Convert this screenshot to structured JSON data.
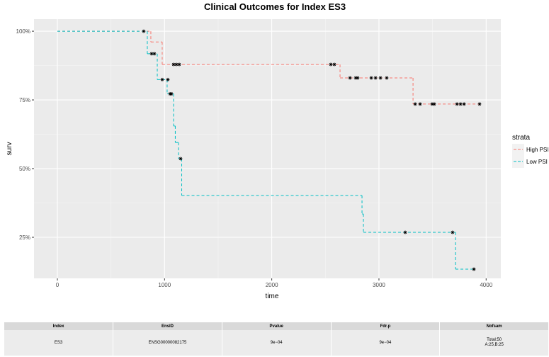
{
  "chart_data": {
    "type": "step",
    "title": "Clinical Outcomes for Index ES3",
    "x_label": "time",
    "y_label": "surv",
    "legend_title": "strata",
    "legend_position": "right",
    "xlim": [
      -218,
      4137
    ],
    "xticks": [
      0,
      1000,
      2000,
      3000,
      4000
    ],
    "ylim": [
      10.05,
      104.4
    ],
    "yticks": [
      {
        "value": 25,
        "label": "25%"
      },
      {
        "value": 50,
        "label": "50%"
      },
      {
        "value": 75,
        "label": "75%"
      },
      {
        "value": 100,
        "label": "100%"
      }
    ],
    "grid": true,
    "series": [
      {
        "name": "High PSI",
        "color": "#F8766D",
        "x": [
          0,
          872,
          978,
          2637,
          3318,
          3939
        ],
        "values": [
          100,
          96.1,
          87.9,
          83.0,
          73.5,
          73.5
        ],
        "censor_x": [
          1084,
          1110,
          1137,
          2551,
          2584,
          2730,
          2783,
          2802,
          2928,
          2968,
          3014,
          3073,
          3338,
          3384,
          3496,
          3516,
          3728,
          3761,
          3794,
          3939
        ],
        "censor_values": [
          87.9,
          87.9,
          87.9,
          87.9,
          87.9,
          83.0,
          83.0,
          83.0,
          83.0,
          83.0,
          83.0,
          83.0,
          73.5,
          73.5,
          73.5,
          73.5,
          73.5,
          73.5,
          73.5,
          73.5
        ]
      },
      {
        "name": "Low PSI",
        "color": "#00BFC4",
        "x": [
          0,
          839,
          932,
          1024,
          1084,
          1100,
          1130,
          1160,
          2842,
          2855,
          3714,
          3886
        ],
        "values": [
          100,
          91.8,
          82.4,
          77.2,
          65.5,
          59.5,
          53.6,
          40.2,
          33.5,
          26.8,
          13.4,
          13.4
        ],
        "censor_x": [
          806,
          879,
          905,
          978,
          1031,
          1051,
          1064,
          1150,
          3245,
          3687,
          3886
        ],
        "censor_values": [
          100,
          91.8,
          91.8,
          82.4,
          82.4,
          77.2,
          77.2,
          53.6,
          26.8,
          26.8,
          13.4
        ]
      }
    ]
  },
  "table": {
    "headers": [
      "Index",
      "EnsID",
      "Pvalue",
      "Fdr.p",
      "Nofsam"
    ],
    "rows": [
      [
        "ES3",
        "ENSG00000082175",
        "9e−04",
        "9e−04",
        [
          "Total:50",
          "A:25,B:25"
        ]
      ]
    ]
  }
}
